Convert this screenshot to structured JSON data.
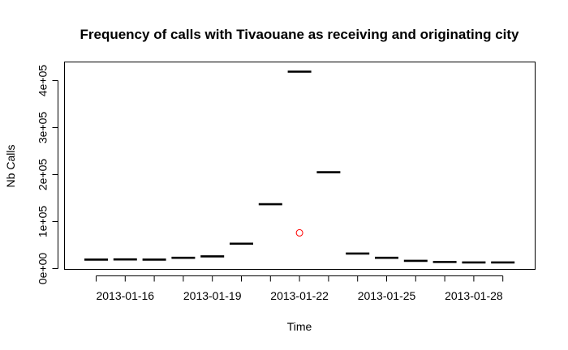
{
  "chart_data": {
    "type": "boxplot",
    "title": "Frequency of calls with Tivaouane as receiving and originating city",
    "xlabel": "Time",
    "ylabel": "Nb Calls",
    "ylim": [
      0,
      430000
    ],
    "y_ticks": [
      0,
      100000,
      200000,
      300000,
      400000
    ],
    "y_tick_labels": [
      "0e+00",
      "1e+05",
      "2e+05",
      "3e+05",
      "4e+05"
    ],
    "x_tick_labels": [
      "2013-01-16",
      "2013-01-19",
      "2013-01-22",
      "2013-01-25",
      "2013-01-28"
    ],
    "x_labeled_days": [
      1,
      4,
      7,
      10,
      13
    ],
    "categories": [
      "2013-01-15",
      "2013-01-16",
      "2013-01-17",
      "2013-01-18",
      "2013-01-19",
      "2013-01-20",
      "2013-01-21",
      "2013-01-22",
      "2013-01-23",
      "2013-01-24",
      "2013-01-25",
      "2013-01-26",
      "2013-01-27",
      "2013-01-28",
      "2013-01-29"
    ],
    "values": [
      19000,
      19500,
      19000,
      23000,
      26000,
      53000,
      137000,
      419000,
      205000,
      32000,
      23000,
      16500,
      14000,
      13000,
      13000
    ],
    "outliers": [
      {
        "category": "2013-01-22",
        "value": 76000
      }
    ],
    "outlier_color": "#ff0000",
    "grid": false,
    "legend": "none"
  }
}
